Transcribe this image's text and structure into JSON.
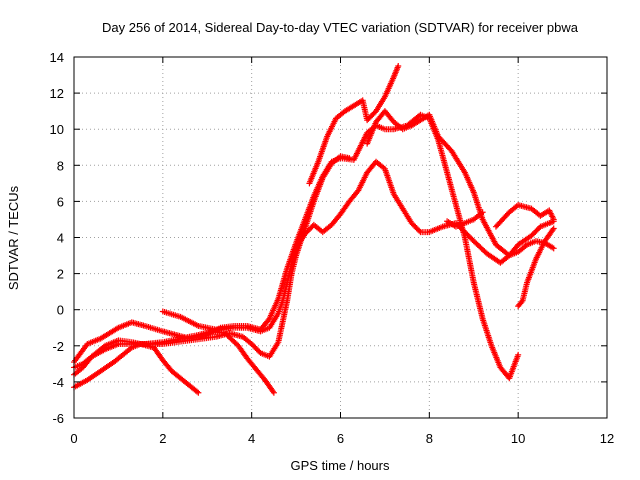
{
  "chart_data": {
    "type": "scatter",
    "title": "Day 256 of 2014, Sidereal Day-to-day VTEC variation (SDTVAR) for receiver pbwa",
    "xlabel": "GPS time / hours",
    "ylabel": "SDTVAR / TECUs",
    "xlim": [
      0,
      12
    ],
    "ylim": [
      -6,
      14
    ],
    "xticks": [
      "0",
      "2",
      "4",
      "6",
      "8",
      "10",
      "12"
    ],
    "yticks": [
      "-6",
      "-4",
      "-2",
      "0",
      "2",
      "4",
      "6",
      "8",
      "10",
      "12",
      "14"
    ],
    "grid": true,
    "legend": "none",
    "marker": "+",
    "color": "#ff0000",
    "series": [
      {
        "x": [
          0,
          0.3,
          0.6,
          0.9,
          1.1,
          1.3,
          1.5,
          1.8,
          2.0,
          2.2,
          2.5,
          2.8
        ],
        "y": [
          -4.3,
          -3.9,
          -3.4,
          -2.9,
          -2.5,
          -2.1,
          -1.9,
          -2.1,
          -2.8,
          -3.4,
          -4.0,
          -4.6
        ]
      },
      {
        "x": [
          0,
          0.2,
          0.4,
          0.7,
          1.0,
          1.3,
          1.6,
          2.0,
          2.4,
          2.8,
          3.1,
          3.4,
          3.7,
          3.9,
          4.1,
          4.3,
          4.5
        ],
        "y": [
          -3.2,
          -3.0,
          -2.6,
          -2.2,
          -1.9,
          -1.9,
          -1.9,
          -1.8,
          -1.6,
          -1.4,
          -1.2,
          -1.3,
          -2.0,
          -2.7,
          -3.3,
          -3.9,
          -4.6
        ]
      },
      {
        "x": [
          0,
          0.2,
          0.4,
          0.7,
          1.0,
          1.3,
          1.5,
          1.8,
          2.0,
          2.3,
          2.6,
          2.9,
          3.2,
          3.5,
          3.8,
          4.0,
          4.2,
          4.4,
          4.6,
          4.8,
          4.9,
          5.0,
          5.2,
          5.4,
          5.6,
          5.8,
          6.0,
          6.2
        ],
        "y": [
          -3.6,
          -3.2,
          -2.6,
          -2.0,
          -1.7,
          -1.8,
          -1.9,
          -1.9,
          -1.9,
          -1.8,
          -1.7,
          -1.6,
          -1.5,
          -1.3,
          -1.5,
          -1.9,
          -2.4,
          -2.6,
          -1.8,
          0.5,
          2.0,
          3.0,
          4.5,
          6.0,
          7.3,
          8.1,
          8.5,
          8.4
        ]
      },
      {
        "x": [
          0,
          0.3,
          0.6,
          1.0,
          1.3,
          1.6,
          2.0,
          2.3,
          2.6,
          3.0,
          3.3,
          3.6,
          3.9,
          4.2,
          4.4,
          4.6,
          4.8,
          5.0,
          5.2,
          5.4,
          5.6,
          5.8,
          6.0,
          6.3,
          6.6,
          6.8,
          7.0,
          7.2,
          7.5,
          7.8,
          8.0,
          8.2,
          8.4,
          8.6,
          8.8,
          9.0,
          9.2,
          9.4,
          9.6,
          9.8,
          10.0
        ],
        "y": [
          -2.9,
          -1.9,
          -1.6,
          -1.0,
          -0.7,
          -0.9,
          -1.2,
          -1.4,
          -1.6,
          -1.4,
          -1.0,
          -0.9,
          -0.9,
          -1.1,
          -0.5,
          0.6,
          2.3,
          3.7,
          5.0,
          6.3,
          7.4,
          8.2,
          8.4,
          8.3,
          9.8,
          10.2,
          10.0,
          10.0,
          10.2,
          10.8,
          10.6,
          9.4,
          7.6,
          5.8,
          4.0,
          1.5,
          -0.5,
          -2.0,
          -3.2,
          -3.8,
          -2.5
        ]
      },
      {
        "x": [
          2.0,
          2.4,
          2.8,
          3.2,
          3.6,
          3.9,
          4.2,
          4.4,
          4.6,
          4.7,
          4.8,
          4.9,
          5.0,
          5.2,
          5.4,
          5.6,
          5.8,
          6.0,
          6.2,
          6.4,
          6.6,
          6.8,
          7.0,
          7.2,
          7.4,
          7.6,
          7.8,
          8.0,
          8.3,
          8.6,
          9.0,
          9.3,
          9.6,
          9.8,
          10.0,
          10.3,
          10.5,
          10.7,
          10.8
        ],
        "y": [
          -0.1,
          -0.4,
          -0.9,
          -1.1,
          -1.0,
          -1.0,
          -1.2,
          -1.0,
          -0.2,
          0.5,
          1.5,
          2.5,
          3.4,
          4.2,
          4.7,
          4.3,
          4.7,
          5.3,
          6.0,
          6.6,
          7.6,
          8.2,
          7.8,
          6.4,
          5.6,
          4.8,
          4.3,
          4.3,
          4.6,
          4.8,
          3.8,
          3.1,
          2.6,
          3.0,
          3.6,
          4.1,
          4.6,
          4.8,
          4.9
        ]
      },
      {
        "x": [
          5.3,
          5.5,
          5.7,
          5.9,
          6.1,
          6.3,
          6.5,
          6.6,
          6.8,
          7.0,
          7.2,
          7.3
        ],
        "y": [
          7.0,
          8.2,
          9.6,
          10.6,
          11.0,
          11.3,
          11.6,
          10.5,
          11.0,
          11.8,
          12.9,
          13.5
        ]
      },
      {
        "x": [
          6.6,
          6.8,
          7.0,
          7.2,
          7.4,
          7.6,
          7.8,
          8.0,
          8.2,
          8.5,
          8.8,
          9.0,
          9.2,
          9.5,
          9.8,
          10.0,
          10.2,
          10.4,
          10.6,
          10.8
        ],
        "y": [
          9.2,
          10.4,
          11.0,
          10.4,
          10.0,
          10.2,
          10.5,
          10.8,
          9.6,
          8.8,
          7.6,
          6.5,
          5.0,
          3.6,
          3.0,
          3.2,
          3.6,
          3.8,
          3.7,
          3.4
        ]
      },
      {
        "x": [
          8.4,
          8.6,
          8.8,
          9.0,
          9.2
        ],
        "y": [
          4.9,
          4.6,
          4.8,
          5.0,
          5.4
        ]
      },
      {
        "x": [
          9.5,
          9.8,
          10.0,
          10.3,
          10.5,
          10.7,
          10.8
        ],
        "y": [
          4.6,
          5.4,
          5.8,
          5.6,
          5.2,
          5.5,
          5.0
        ]
      },
      {
        "x": [
          10.0,
          10.1,
          10.2,
          10.4,
          10.6,
          10.8
        ],
        "y": [
          0.2,
          0.5,
          1.5,
          2.8,
          3.8,
          4.5
        ]
      }
    ]
  }
}
